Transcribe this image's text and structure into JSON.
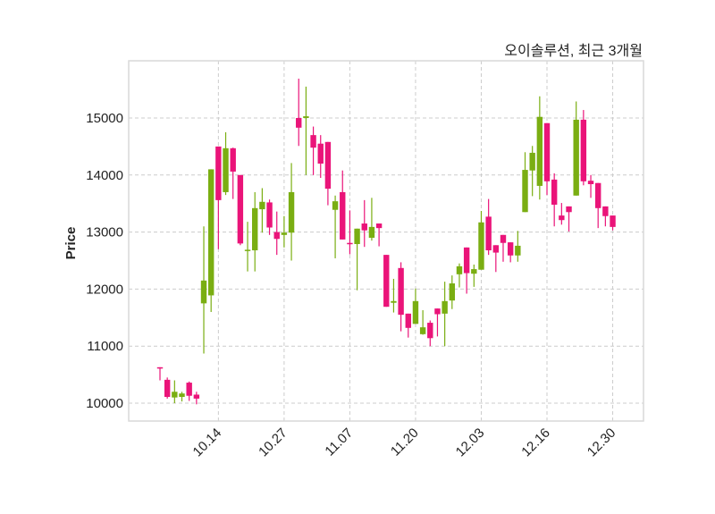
{
  "chart_data": {
    "type": "candlestick",
    "title": "오이솔루션, 최근 3개월",
    "xlabel": "",
    "ylabel": "Price",
    "ylim": [
      9687,
      16003
    ],
    "yticks": [
      10000,
      11000,
      12000,
      13000,
      14000,
      15000
    ],
    "xticks": [
      {
        "index": 8,
        "label": "10.14"
      },
      {
        "index": 17,
        "label": "10.27"
      },
      {
        "index": 26,
        "label": "11.07"
      },
      {
        "index": 35,
        "label": "11.20"
      },
      {
        "index": 44,
        "label": "12.03"
      },
      {
        "index": 53,
        "label": "12.16"
      },
      {
        "index": 62,
        "label": "12.30"
      }
    ],
    "grid": true,
    "colors": {
      "up": "#7aae12",
      "down": "#ea1479",
      "grid": "#cccccc",
      "frame": "#d9d9d9"
    },
    "ohlc": [
      [
        10630,
        10630,
        10400,
        10620
      ],
      [
        10410,
        10450,
        10080,
        10110
      ],
      [
        10100,
        10400,
        10000,
        10200
      ],
      [
        10110,
        10200,
        10030,
        10170
      ],
      [
        10360,
        10380,
        10040,
        10130
      ],
      [
        10150,
        10200,
        9980,
        10080
      ],
      [
        11750,
        13100,
        10870,
        12150
      ],
      [
        11890,
        14100,
        11600,
        14100
      ],
      [
        14500,
        14500,
        12700,
        13560
      ],
      [
        13700,
        14750,
        13650,
        14470
      ],
      [
        14470,
        14480,
        13580,
        14060
      ],
      [
        14000,
        14000,
        12770,
        12800
      ],
      [
        12670,
        13180,
        12310,
        12690
      ],
      [
        12680,
        13700,
        12310,
        13420
      ],
      [
        13400,
        13770,
        12990,
        13530
      ],
      [
        13520,
        13570,
        12950,
        13080
      ],
      [
        13000,
        13360,
        12600,
        12880
      ],
      [
        12950,
        13280,
        12730,
        12990
      ],
      [
        12990,
        14210,
        12500,
        13700
      ],
      [
        15000,
        15690,
        14510,
        14830
      ],
      [
        15000,
        15550,
        14000,
        15030
      ],
      [
        14700,
        14850,
        14000,
        14480
      ],
      [
        14550,
        14700,
        13950,
        14200
      ],
      [
        14580,
        14580,
        13470,
        13760
      ],
      [
        13390,
        13640,
        12540,
        13540
      ],
      [
        13700,
        14080,
        12870,
        12870
      ],
      [
        12810,
        13380,
        12610,
        12800
      ],
      [
        12790,
        13060,
        11980,
        13060
      ],
      [
        13150,
        13560,
        12740,
        13030
      ],
      [
        12900,
        13600,
        12850,
        13090
      ],
      [
        13150,
        13150,
        12750,
        13070
      ],
      [
        12600,
        12600,
        11690,
        11690
      ],
      [
        11760,
        12180,
        11590,
        11790
      ],
      [
        12370,
        12470,
        11260,
        11550
      ],
      [
        11570,
        11570,
        11150,
        11320
      ],
      [
        11390,
        12010,
        11390,
        11790
      ],
      [
        11210,
        11630,
        11200,
        11330
      ],
      [
        11410,
        11450,
        11000,
        11140
      ],
      [
        11660,
        11660,
        11170,
        11560
      ],
      [
        11570,
        12130,
        11000,
        11790
      ],
      [
        11800,
        12240,
        11650,
        12100
      ],
      [
        12260,
        12450,
        12030,
        12400
      ],
      [
        12730,
        12730,
        11920,
        12280
      ],
      [
        12270,
        12430,
        12040,
        12350
      ],
      [
        12340,
        13370,
        12340,
        13170
      ],
      [
        13270,
        13580,
        12600,
        12680
      ],
      [
        12770,
        12770,
        12300,
        12640
      ],
      [
        12950,
        12950,
        12480,
        12810
      ],
      [
        12820,
        12820,
        12470,
        12590
      ],
      [
        12590,
        13020,
        12480,
        12760
      ],
      [
        13350,
        14400,
        13350,
        14090
      ],
      [
        14080,
        14510,
        13630,
        14390
      ],
      [
        13810,
        15380,
        13570,
        15020
      ],
      [
        14910,
        14910,
        13650,
        13890
      ],
      [
        13920,
        14030,
        13100,
        13480
      ],
      [
        13290,
        13510,
        13130,
        13210
      ],
      [
        13450,
        13450,
        13010,
        13350
      ],
      [
        13640,
        15290,
        13640,
        14970
      ],
      [
        14970,
        15140,
        13820,
        13890
      ],
      [
        13900,
        14000,
        13600,
        13840
      ],
      [
        13860,
        13860,
        13070,
        13420
      ],
      [
        13450,
        13450,
        13100,
        13280
      ],
      [
        13290,
        13290,
        13030,
        13090
      ]
    ]
  }
}
